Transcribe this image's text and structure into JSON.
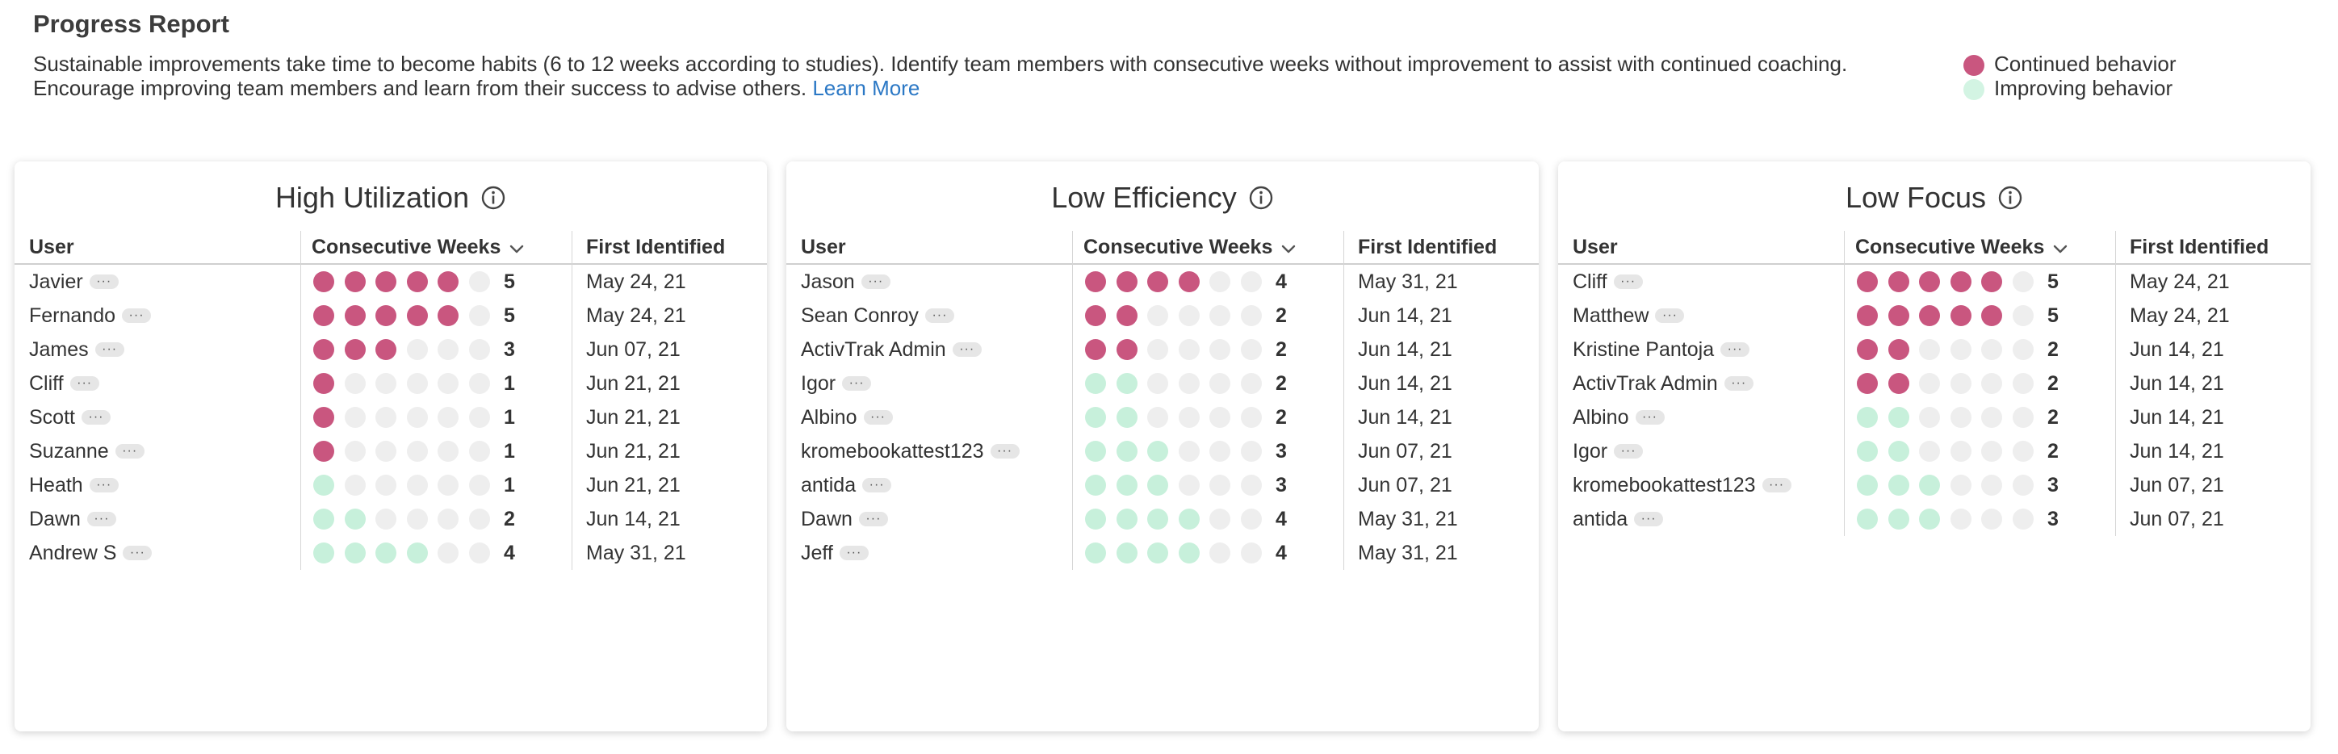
{
  "header": {
    "title": "Progress Report",
    "description_line1": "Sustainable improvements take time to become habits (6 to 12 weeks according to studies). Identify team members with consecutive weeks without improvement to assist with continued coaching.",
    "description_line2": "Encourage improving team members and learn from their success to advise others.",
    "learn_more": "Learn More"
  },
  "legend": [
    {
      "label": "Continued behavior",
      "color": "#c9567f"
    },
    {
      "label": "Improving behavior",
      "color": "#d3f4e3"
    }
  ],
  "colors": {
    "continued": "#c9567f",
    "improving": "#c7f0db",
    "empty": "#eeeeee",
    "link": "#2b78c5"
  },
  "columns": {
    "user": "User",
    "weeks": "Consecutive Weeks",
    "first": "First Identified"
  },
  "more_label": "···",
  "cards": [
    {
      "title": "High Utilization",
      "rows": [
        {
          "user": "Javier",
          "weeks": 5,
          "type": "continued",
          "first": "May 24, 21"
        },
        {
          "user": "Fernando",
          "weeks": 5,
          "type": "continued",
          "first": "May 24, 21"
        },
        {
          "user": "James",
          "weeks": 3,
          "type": "continued",
          "first": "Jun 07, 21"
        },
        {
          "user": "Cliff",
          "weeks": 1,
          "type": "continued",
          "first": "Jun 21, 21"
        },
        {
          "user": "Scott",
          "weeks": 1,
          "type": "continued",
          "first": "Jun 21, 21"
        },
        {
          "user": "Suzanne",
          "weeks": 1,
          "type": "continued",
          "first": "Jun 21, 21"
        },
        {
          "user": "Heath",
          "weeks": 1,
          "type": "improving",
          "first": "Jun 21, 21"
        },
        {
          "user": "Dawn",
          "weeks": 2,
          "type": "improving",
          "first": "Jun 14, 21"
        },
        {
          "user": "Andrew S",
          "weeks": 4,
          "type": "improving",
          "first": "May 31, 21"
        }
      ]
    },
    {
      "title": "Low Efficiency",
      "rows": [
        {
          "user": "Jason",
          "weeks": 4,
          "type": "continued",
          "first": "May 31, 21"
        },
        {
          "user": "Sean Conroy",
          "weeks": 2,
          "type": "continued",
          "first": "Jun 14, 21"
        },
        {
          "user": "ActivTrak Admin",
          "weeks": 2,
          "type": "continued",
          "first": "Jun 14, 21"
        },
        {
          "user": "Igor",
          "weeks": 2,
          "type": "improving",
          "first": "Jun 14, 21"
        },
        {
          "user": "Albino",
          "weeks": 2,
          "type": "improving",
          "first": "Jun 14, 21"
        },
        {
          "user": "kromebookattest123",
          "weeks": 3,
          "type": "improving",
          "first": "Jun 07, 21"
        },
        {
          "user": "antida",
          "weeks": 3,
          "type": "improving",
          "first": "Jun 07, 21"
        },
        {
          "user": "Dawn",
          "weeks": 4,
          "type": "improving",
          "first": "May 31, 21"
        },
        {
          "user": "Jeff",
          "weeks": 4,
          "type": "improving",
          "first": "May 31, 21"
        }
      ]
    },
    {
      "title": "Low Focus",
      "rows": [
        {
          "user": "Cliff",
          "weeks": 5,
          "type": "continued",
          "first": "May 24, 21"
        },
        {
          "user": "Matthew",
          "weeks": 5,
          "type": "continued",
          "first": "May 24, 21"
        },
        {
          "user": "Kristine Pantoja",
          "weeks": 2,
          "type": "continued",
          "first": "Jun 14, 21"
        },
        {
          "user": "ActivTrak Admin",
          "weeks": 2,
          "type": "continued",
          "first": "Jun 14, 21"
        },
        {
          "user": "Albino",
          "weeks": 2,
          "type": "improving",
          "first": "Jun 14, 21"
        },
        {
          "user": "Igor",
          "weeks": 2,
          "type": "improving",
          "first": "Jun 14, 21"
        },
        {
          "user": "kromebookattest123",
          "weeks": 3,
          "type": "improving",
          "first": "Jun 07, 21"
        },
        {
          "user": "antida",
          "weeks": 3,
          "type": "improving",
          "first": "Jun 07, 21"
        }
      ]
    }
  ]
}
